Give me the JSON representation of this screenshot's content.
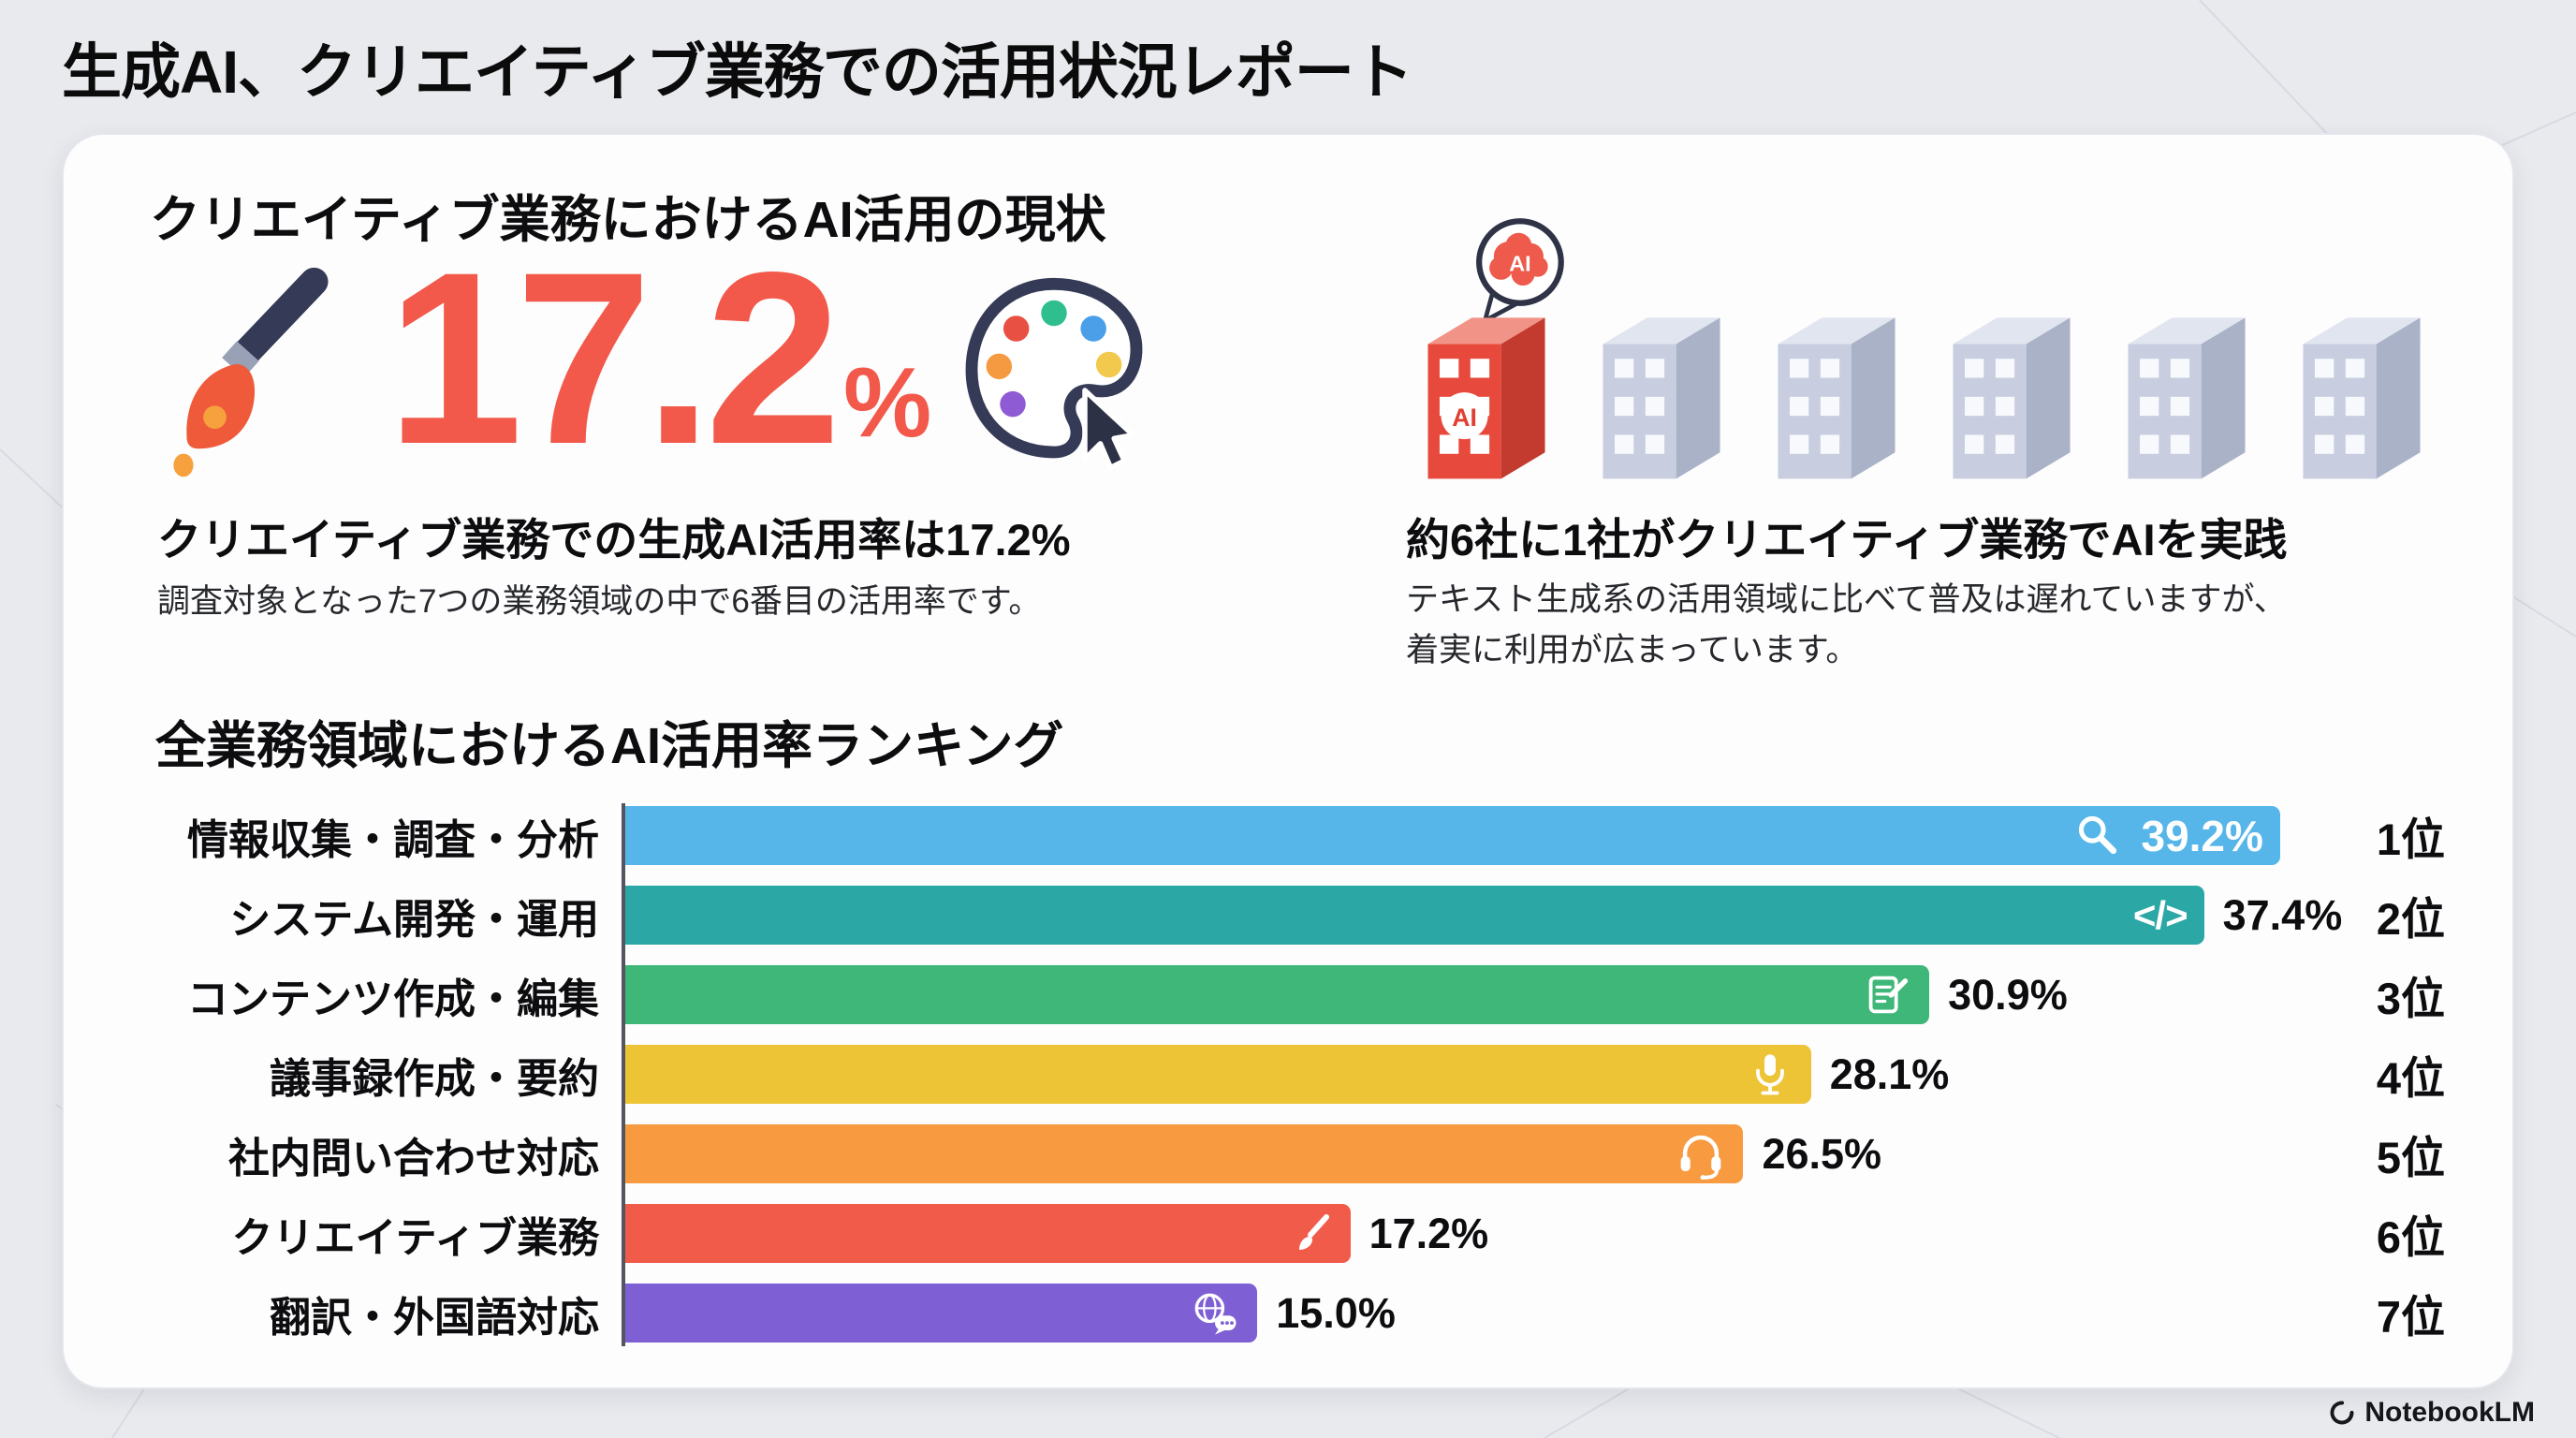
{
  "page": {
    "title": "生成AI、クリエイティブ業務での活用状況レポート",
    "brand": "NotebookLM"
  },
  "overview": {
    "heading": "クリエイティブ業務におけるAI活用の現状",
    "stat_value": "17.2",
    "stat_unit": "%",
    "stat_color": "#f2594a",
    "caption": "クリエイティブ業務での生成AI活用率は17.2%",
    "subcaption": "調査対象となった7つの業務領域の中で6番目の活用率です。"
  },
  "adoption": {
    "caption": "約6社に1社がクリエイティブ業務でAIを実践",
    "subcaption_line1": "テキスト生成系の活用領域に比べて普及は遅れていますが、",
    "subcaption_line2": "着実に利用が広まっています。",
    "ai_label": "AI",
    "companies_total": 6,
    "companies_highlighted": 1
  },
  "ranking": {
    "heading": "全業務領域におけるAI活用率ランキング"
  },
  "chart_data": {
    "type": "bar",
    "orientation": "horizontal",
    "title": "全業務領域におけるAI活用率ランキング",
    "categories": [
      "情報収集・調査・分析",
      "システム開発・運用",
      "コンテンツ作成・編集",
      "議事録作成・要約",
      "社内問い合わせ対応",
      "クリエイティブ業務",
      "翻訳・外国語対応"
    ],
    "values": [
      39.2,
      37.4,
      30.9,
      28.1,
      26.5,
      17.2,
      15.0
    ],
    "value_labels": [
      "39.2%",
      "37.4%",
      "30.9%",
      "28.1%",
      "26.5%",
      "17.2%",
      "15.0%"
    ],
    "ranks": [
      "1位",
      "2位",
      "3位",
      "4位",
      "5位",
      "6位",
      "7位"
    ],
    "colors": [
      "#57b6e9",
      "#2ba8a6",
      "#3eb778",
      "#eec437",
      "#f79a40",
      "#f15b4a",
      "#7e5fd4"
    ],
    "icons": [
      "search-icon",
      "code-icon",
      "document-edit-icon",
      "microphone-icon",
      "headset-icon",
      "paintbrush-icon",
      "globe-chat-icon"
    ],
    "code_glyph": "</>",
    "xlim": [
      0,
      40
    ],
    "grid": false,
    "legend": false
  }
}
